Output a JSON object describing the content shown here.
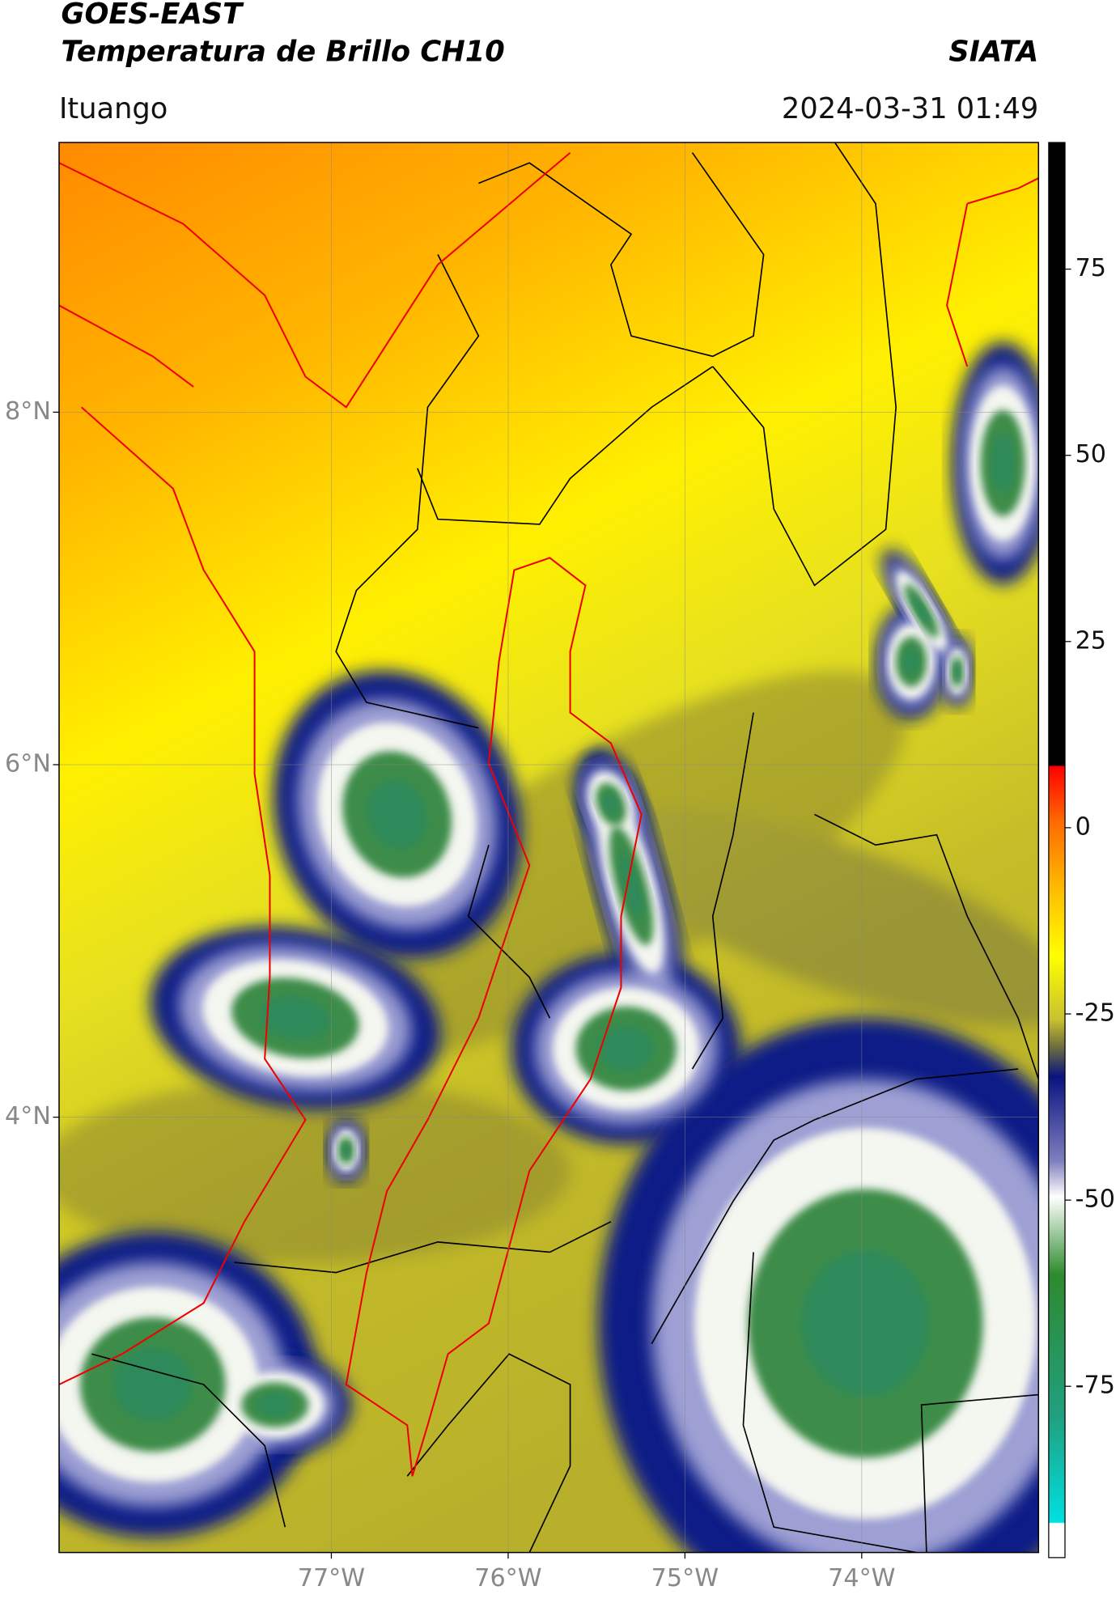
{
  "header": {
    "title": "GOES-EAST",
    "subtitle": "Temperatura de Brillo CH10",
    "source": "SIATA",
    "region": "Ituango",
    "datetime": "2024-03-31 01:49"
  },
  "map": {
    "xlim": [
      -78.54,
      -73.0
    ],
    "ylim": [
      1.53,
      9.53
    ],
    "lat_ticks": [
      {
        "value": 8,
        "label": "8°N"
      },
      {
        "value": 6,
        "label": "6°N"
      },
      {
        "value": 4,
        "label": "4°N"
      }
    ],
    "lon_ticks": [
      {
        "value": -77,
        "label": "77°W"
      },
      {
        "value": -76,
        "label": "76°W"
      },
      {
        "value": -75,
        "label": "75°W"
      },
      {
        "value": -74,
        "label": "74°W"
      }
    ],
    "colorbar": {
      "lim": [
        -98,
        92
      ],
      "ticks": [
        75,
        50,
        25,
        0,
        -25,
        -50,
        -75
      ]
    }
  }
}
